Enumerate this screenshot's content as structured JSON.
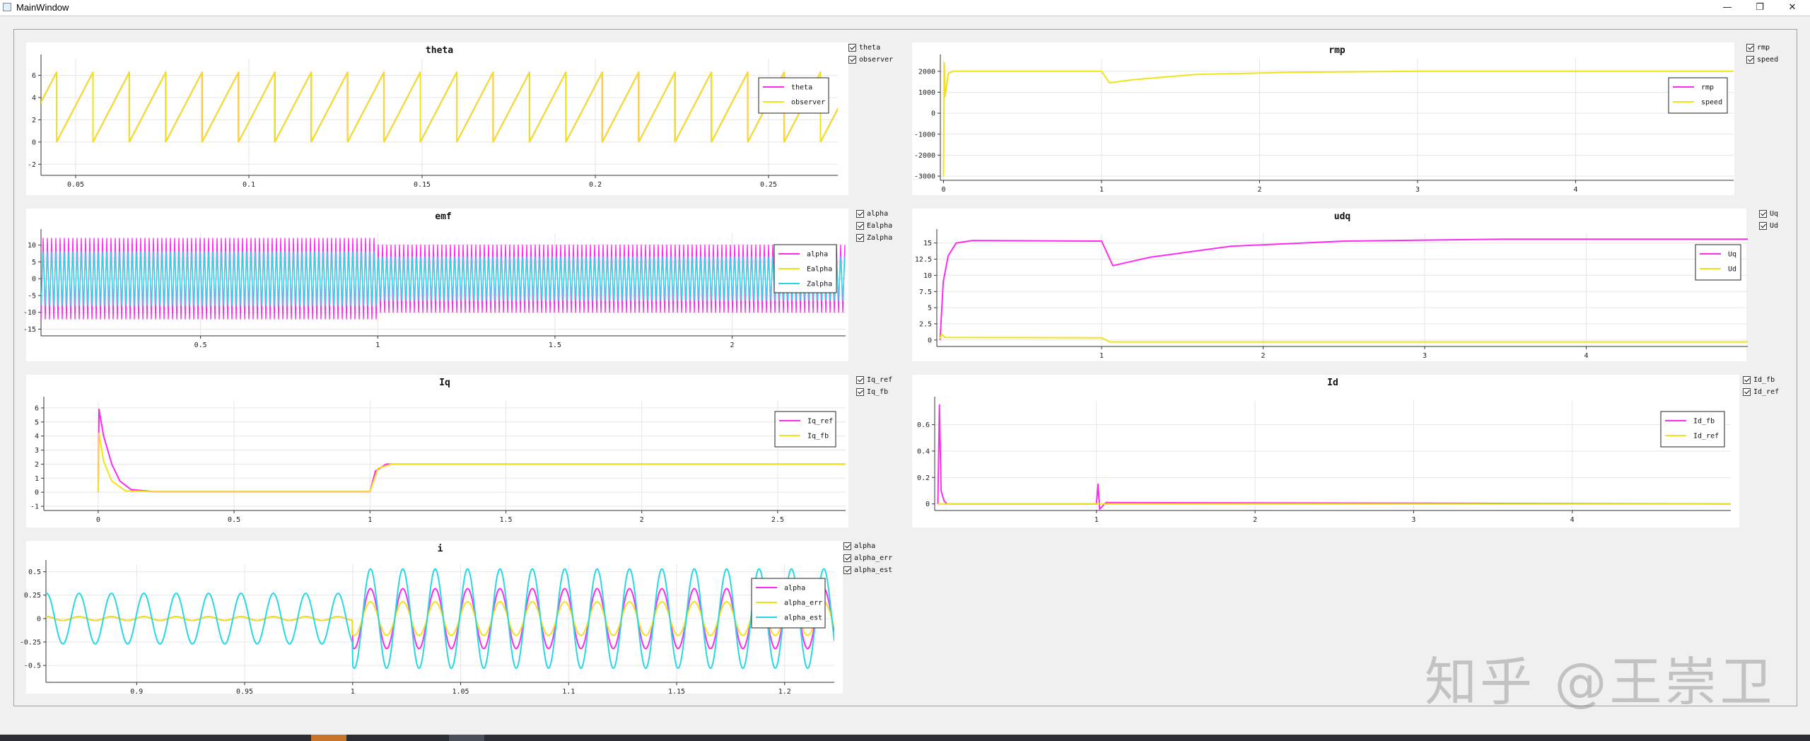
{
  "window": {
    "title": "MainWindow",
    "controls": {
      "minimize": "—",
      "maximize": "❐",
      "close": "✕"
    }
  },
  "colors": {
    "magenta": "#ff2af0",
    "yellow": "#f2e21b",
    "cyan": "#26d8e4",
    "orange": "#f2a23a",
    "grid": "#e6e6e6"
  },
  "watermark": "知乎 @王崇卫",
  "plots": [
    {
      "id": "theta",
      "title": "theta",
      "toggles": [
        "theta",
        "observer"
      ],
      "legend": [
        {
          "label": "theta",
          "color": "#ff2af0"
        },
        {
          "label": "observer",
          "color": "#f2e21b"
        }
      ],
      "chart_data": {
        "type": "line",
        "xlim": [
          0.04,
          0.27
        ],
        "ylim": [
          -3,
          7.5
        ],
        "xticks": [
          0.05,
          0.1,
          0.15,
          0.2,
          0.25
        ],
        "xticklabels": [
          "0.05",
          "0.1",
          "0.15",
          "0.2",
          "0.25"
        ],
        "yticks": [
          -2,
          0,
          2,
          4,
          6
        ],
        "yticklabels": [
          "-2",
          "0",
          "2",
          "4",
          "6"
        ],
        "series": [
          {
            "name": "theta",
            "kind": "sawtooth",
            "period": 0.0105,
            "min": 0,
            "max": 6.28
          },
          {
            "name": "observer",
            "kind": "sawtooth",
            "period": 0.0105,
            "min": 0,
            "max": 6.28
          }
        ]
      }
    },
    {
      "id": "rmp",
      "title": "rmp",
      "toggles": [
        "rmp",
        "speed"
      ],
      "legend": [
        {
          "label": "rmp",
          "color": "#ff2af0"
        },
        {
          "label": "speed",
          "color": "#f2e21b"
        }
      ],
      "chart_data": {
        "type": "line",
        "xlim": [
          -0.02,
          5.0
        ],
        "ylim": [
          -3200,
          2600
        ],
        "xticks": [
          0,
          1,
          2,
          3,
          4
        ],
        "xticklabels": [
          "0",
          "1",
          "2",
          "3",
          "4"
        ],
        "yticks": [
          -3000,
          -2000,
          -1000,
          0,
          1000,
          2000
        ],
        "yticklabels": [
          "-3000",
          "-2000",
          "-1000",
          "0",
          "1000",
          "2000"
        ],
        "series": [
          {
            "name": "speed",
            "points": [
              [
                0,
                -3000
              ],
              [
                0.005,
                2400
              ],
              [
                0.01,
                800
              ],
              [
                0.03,
                1900
              ],
              [
                0.06,
                2000
              ],
              [
                0.2,
                2000
              ],
              [
                1.0,
                2000
              ],
              [
                1.05,
                1450
              ],
              [
                1.2,
                1600
              ],
              [
                1.6,
                1850
              ],
              [
                2.2,
                1950
              ],
              [
                3.0,
                2000
              ],
              [
                5.0,
                2000
              ]
            ]
          }
        ]
      }
    },
    {
      "id": "emf",
      "title": "emf",
      "toggles": [
        "alpha",
        "Ealpha",
        "Zalpha"
      ],
      "legend": [
        {
          "label": "alpha",
          "color": "#ff2af0"
        },
        {
          "label": "Ealpha",
          "color": "#f2e21b"
        },
        {
          "label": "Zalpha",
          "color": "#26d8e4"
        }
      ],
      "chart_data": {
        "type": "line",
        "xlim": [
          0.05,
          2.32
        ],
        "ylim": [
          -17,
          13.5
        ],
        "xticks": [
          0.5,
          1,
          1.5,
          2
        ],
        "xticklabels": [
          "0.5",
          "1",
          "1.5",
          "2"
        ],
        "yticks": [
          -15,
          -10,
          -5,
          0,
          5,
          10
        ],
        "yticklabels": [
          "-15",
          "-10",
          "-5",
          "0",
          "5",
          "10"
        ],
        "series": [
          {
            "name": "alpha",
            "kind": "oscillation",
            "amp_before": 12,
            "amp_after": 10,
            "step_x": 1.0
          },
          {
            "name": "Zalpha",
            "kind": "oscillation",
            "amp_before": 8,
            "amp_after": 6.5,
            "step_x": 1.0
          }
        ]
      }
    },
    {
      "id": "udq",
      "title": "udq",
      "toggles": [
        "Uq",
        "Ud"
      ],
      "legend": [
        {
          "label": "Uq",
          "color": "#ff2af0"
        },
        {
          "label": "Ud",
          "color": "#f2e21b"
        }
      ],
      "chart_data": {
        "type": "line",
        "xlim": [
          -0.02,
          5.0
        ],
        "ylim": [
          -1,
          16.5
        ],
        "xticks": [
          1,
          2,
          3,
          4
        ],
        "xticklabels": [
          "1",
          "2",
          "3",
          "4"
        ],
        "yticks": [
          0,
          2.5,
          5,
          7.5,
          10,
          12.5,
          15
        ],
        "yticklabels": [
          "0",
          "2.5",
          "5",
          "7.5",
          "10",
          "12.5",
          "15"
        ],
        "series": [
          {
            "name": "Uq",
            "points": [
              [
                0,
                0
              ],
              [
                0.02,
                9
              ],
              [
                0.05,
                13
              ],
              [
                0.1,
                15
              ],
              [
                0.2,
                15.4
              ],
              [
                1.0,
                15.3
              ],
              [
                1.07,
                11.5
              ],
              [
                1.3,
                12.8
              ],
              [
                1.8,
                14.5
              ],
              [
                2.5,
                15.3
              ],
              [
                3.5,
                15.6
              ],
              [
                5.0,
                15.6
              ]
            ]
          },
          {
            "name": "Ud",
            "points": [
              [
                0,
                0.2
              ],
              [
                0.01,
                0.9
              ],
              [
                0.03,
                0.4
              ],
              [
                1.0,
                0.35
              ],
              [
                1.05,
                -0.3
              ],
              [
                5.0,
                -0.3
              ]
            ]
          }
        ]
      }
    },
    {
      "id": "Iq",
      "title": "Iq",
      "toggles": [
        "Iq_ref",
        "Iq_fb"
      ],
      "legend": [
        {
          "label": "Iq_ref",
          "color": "#ff2af0"
        },
        {
          "label": "Iq_fb",
          "color": "#f2e21b"
        }
      ],
      "chart_data": {
        "type": "line",
        "xlim": [
          -0.2,
          2.75
        ],
        "ylim": [
          -1.3,
          6.5
        ],
        "xticks": [
          0,
          0.5,
          1,
          1.5,
          2,
          2.5
        ],
        "xticklabels": [
          "0",
          "0.5",
          "1",
          "1.5",
          "2",
          "2.5"
        ],
        "yticks": [
          -1,
          0,
          1,
          2,
          3,
          4,
          5,
          6
        ],
        "yticklabels": [
          "-1",
          "0",
          "1",
          "2",
          "3",
          "4",
          "5",
          "6"
        ],
        "series": [
          {
            "name": "Iq_ref",
            "points": [
              [
                0,
                0
              ],
              [
                0.003,
                5.9
              ],
              [
                0.02,
                4
              ],
              [
                0.05,
                2
              ],
              [
                0.08,
                0.8
              ],
              [
                0.12,
                0.2
              ],
              [
                0.2,
                0.05
              ],
              [
                1.0,
                0.05
              ],
              [
                1.02,
                1.5
              ],
              [
                1.06,
                2.0
              ],
              [
                2.75,
                2.0
              ]
            ]
          },
          {
            "name": "Iq_fb",
            "points": [
              [
                0,
                0
              ],
              [
                0.003,
                4.2
              ],
              [
                0.02,
                2.2
              ],
              [
                0.05,
                0.8
              ],
              [
                0.1,
                0.1
              ],
              [
                0.2,
                0.05
              ],
              [
                1.0,
                0.05
              ],
              [
                1.03,
                1.7
              ],
              [
                1.08,
                2.0
              ],
              [
                2.75,
                2.0
              ]
            ]
          }
        ]
      }
    },
    {
      "id": "Id",
      "title": "Id",
      "toggles": [
        "Id_fb",
        "Id_ref"
      ],
      "legend": [
        {
          "label": "Id_fb",
          "color": "#ff2af0"
        },
        {
          "label": "Id_ref",
          "color": "#f2e21b"
        }
      ],
      "chart_data": {
        "type": "line",
        "xlim": [
          -0.02,
          5.0
        ],
        "ylim": [
          -0.05,
          0.78
        ],
        "xticks": [
          1,
          2,
          3,
          4
        ],
        "xticklabels": [
          "1",
          "2",
          "3",
          "4"
        ],
        "yticks": [
          0,
          0.2,
          0.4,
          0.6
        ],
        "yticklabels": [
          "0",
          "0.2",
          "0.4",
          "0.6"
        ],
        "series": [
          {
            "name": "Id_fb",
            "points": [
              [
                0,
                0
              ],
              [
                0.01,
                0.75
              ],
              [
                0.02,
                0.1
              ],
              [
                0.04,
                0.02
              ],
              [
                0.06,
                0
              ],
              [
                1.0,
                0
              ],
              [
                1.01,
                0.15
              ],
              [
                1.02,
                -0.04
              ],
              [
                1.06,
                0.01
              ],
              [
                5.0,
                0
              ]
            ]
          },
          {
            "name": "Id_ref",
            "points": [
              [
                0,
                0
              ],
              [
                5.0,
                0
              ]
            ]
          }
        ]
      }
    },
    {
      "id": "i",
      "title": "i",
      "toggles": [
        "alpha",
        "alpha_err",
        "alpha_est"
      ],
      "legend": [
        {
          "label": "alpha",
          "color": "#ff2af0"
        },
        {
          "label": "alpha_err",
          "color": "#f2e21b"
        },
        {
          "label": "alpha_est",
          "color": "#26d8e4"
        }
      ],
      "chart_data": {
        "type": "line",
        "xlim": [
          0.858,
          1.223
        ],
        "ylim": [
          -0.68,
          0.58
        ],
        "xticks": [
          0.9,
          0.95,
          1,
          1.05,
          1.1,
          1.15,
          1.2
        ],
        "xticklabels": [
          "0.9",
          "0.95",
          "1",
          "1.05",
          "1.1",
          "1.15",
          "1.2"
        ],
        "yticks": [
          -0.5,
          -0.25,
          0,
          0.25,
          0.5
        ],
        "yticklabels": [
          "-0.5",
          "-0.25",
          "0",
          "0.25",
          "0.5"
        ],
        "series": [
          {
            "name": "alpha",
            "kind": "sine",
            "freq": 66.7,
            "amp_before": 0.02,
            "amp_after": 0.32
          },
          {
            "name": "alpha_err",
            "kind": "sine",
            "freq": 66.7,
            "amp_before": 0.02,
            "amp_after": 0.18
          },
          {
            "name": "alpha_est",
            "kind": "sine",
            "freq": 66.7,
            "amp_before": 0.27,
            "amp_after": 0.53
          }
        ]
      }
    }
  ]
}
